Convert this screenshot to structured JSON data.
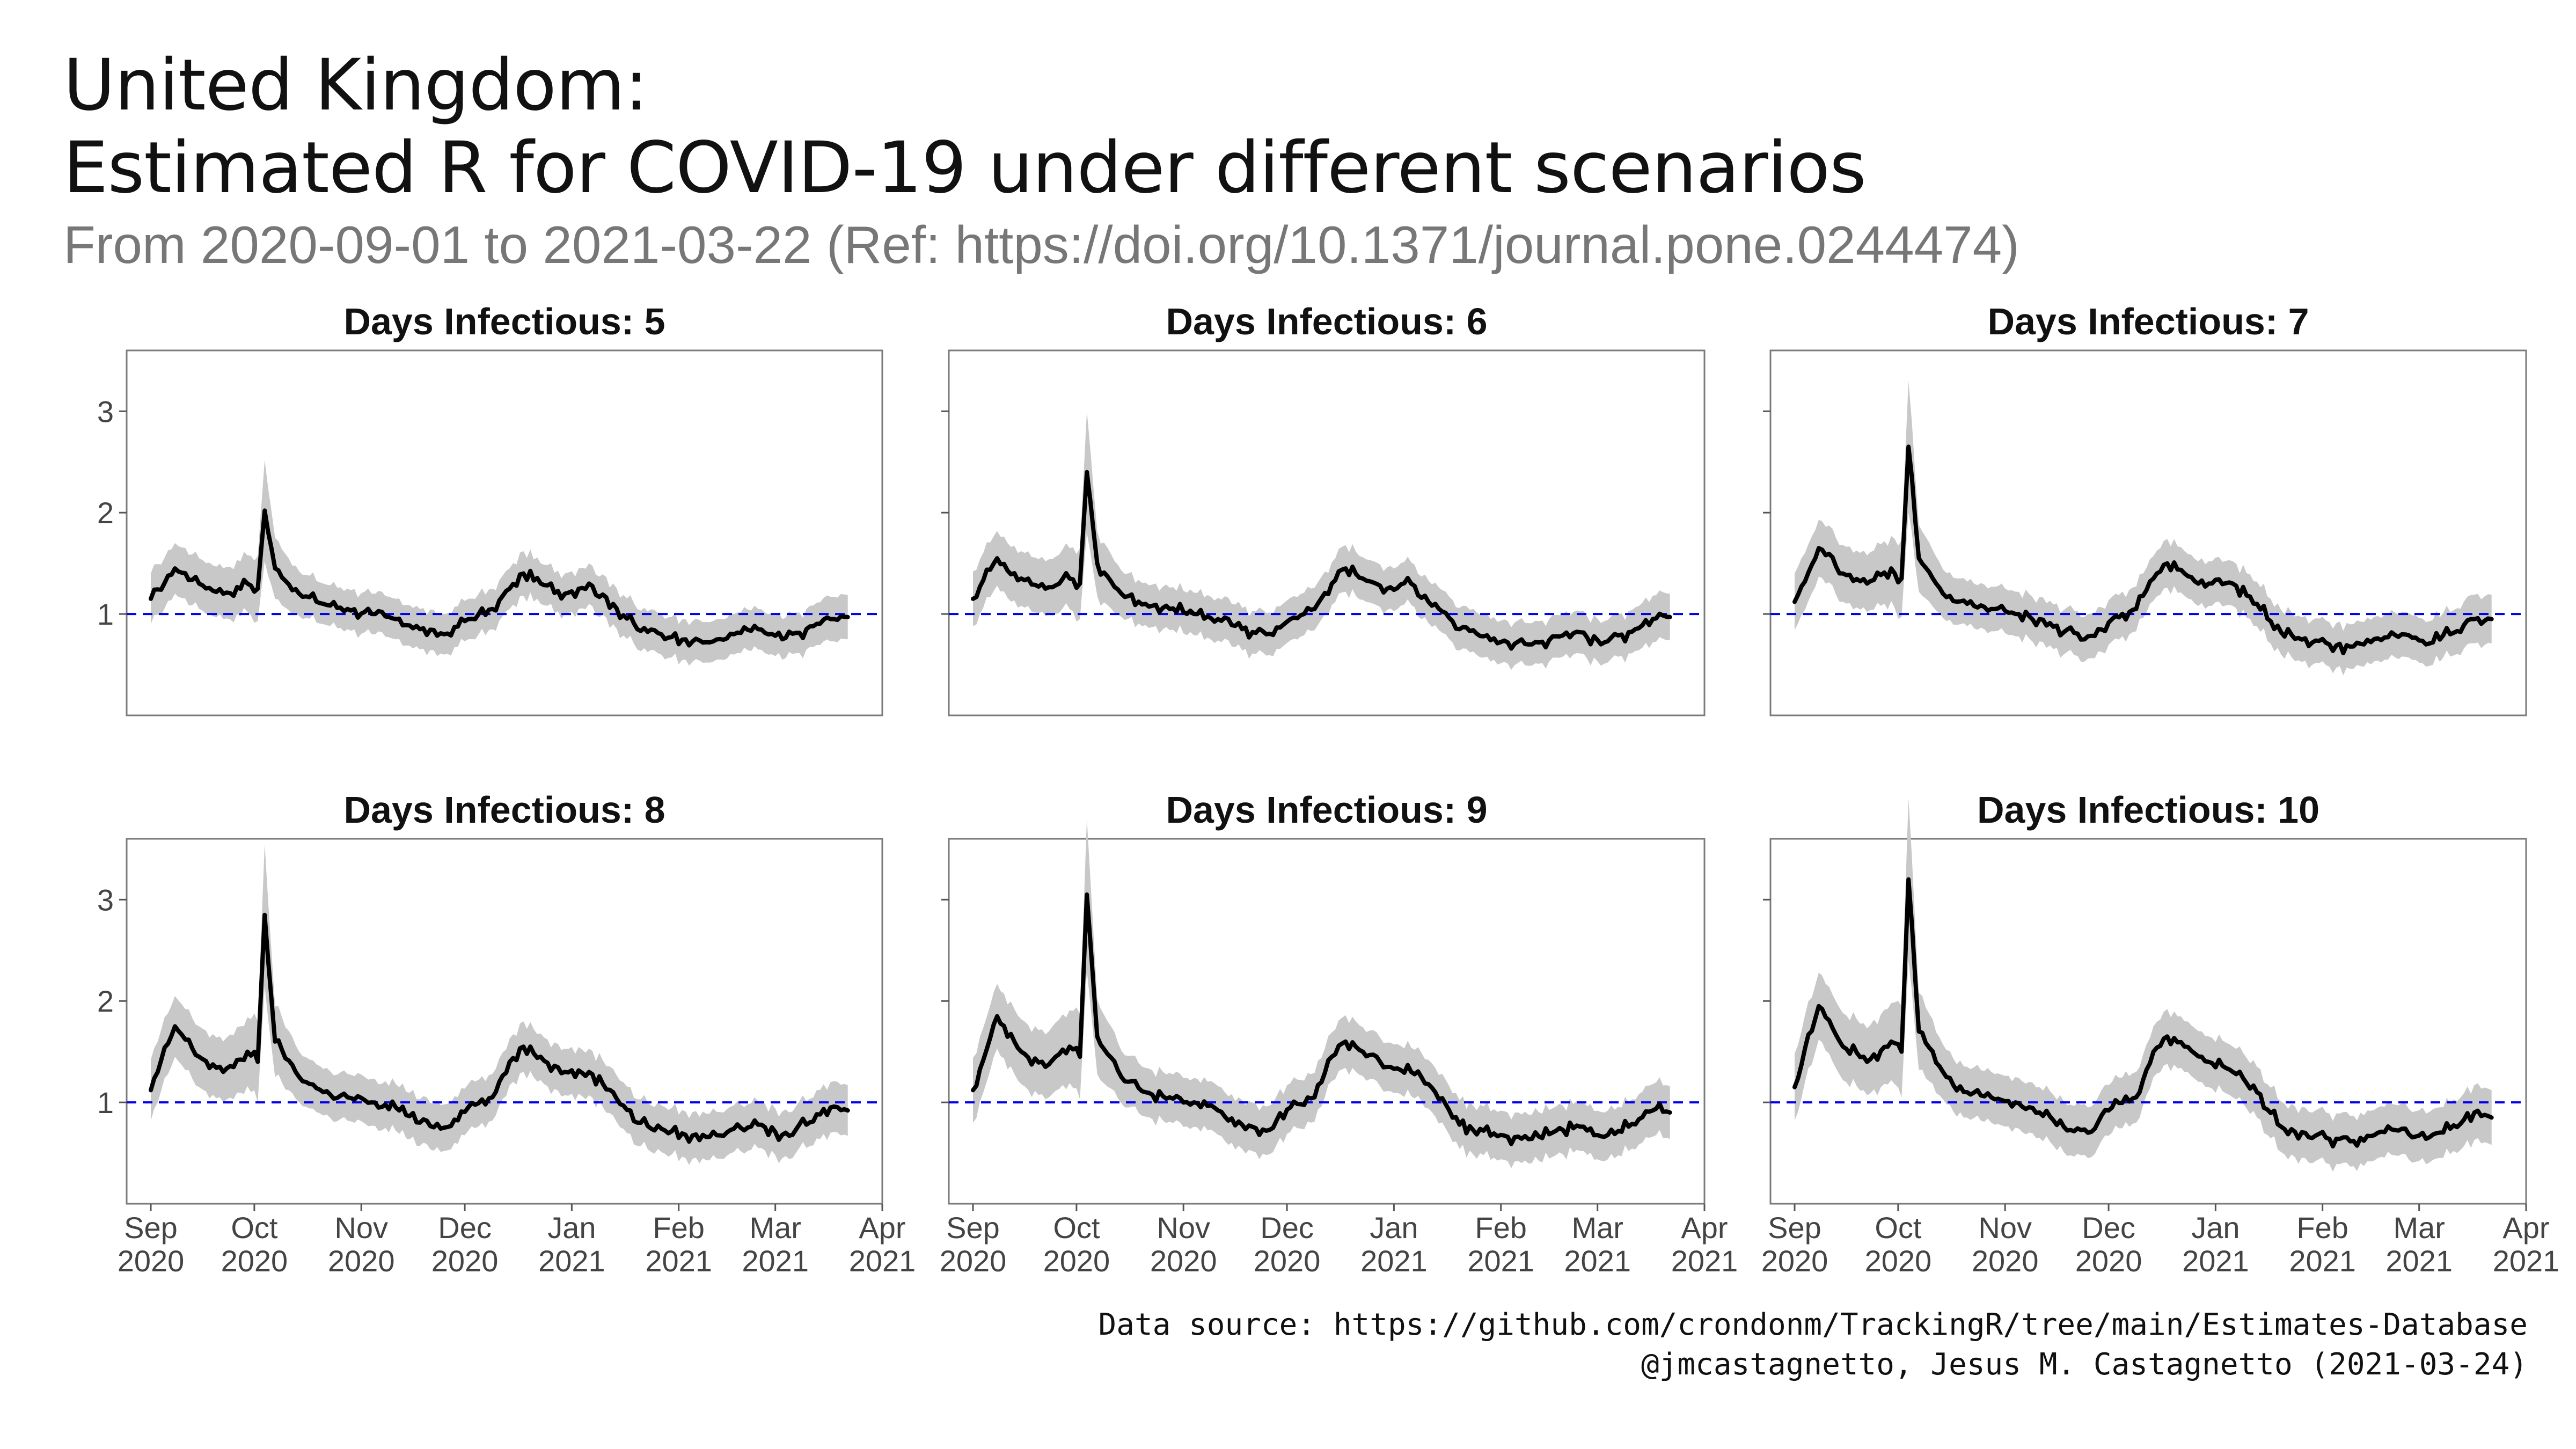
{
  "header": {
    "title_line1": "United Kingdom:",
    "title_line2": "Estimated R for COVID-19 under different scenarios",
    "subtitle": "From 2020-09-01 to 2021-03-22 (Ref: https://doi.org/10.1371/journal.pone.0244474)"
  },
  "caption": {
    "line1": "Data source: https://github.com/crondonm/TrackingR/tree/main/Estimates-Database",
    "line2": "@jmcastagnetto, Jesus M. Castagnetto (2021-03-24)"
  },
  "colors": {
    "line": "#000000",
    "band": "#c8c8c8",
    "reference_line": "#0000ee",
    "panel_border": "#7a7a7a"
  },
  "chart_data": {
    "type": "line",
    "facet_by": "Days Infectious",
    "xlim": [
      "2020-08-25",
      "2021-04-01"
    ],
    "ylim": [
      0,
      3.6
    ],
    "y_ticks": [
      1,
      2,
      3
    ],
    "x_ticks": [
      {
        "date": "2020-09-01",
        "label": [
          "Sep",
          "2020"
        ]
      },
      {
        "date": "2020-10-01",
        "label": [
          "Oct",
          "2020"
        ]
      },
      {
        "date": "2020-11-01",
        "label": [
          "Nov",
          "2020"
        ]
      },
      {
        "date": "2020-12-01",
        "label": [
          "Dec",
          "2020"
        ]
      },
      {
        "date": "2021-01-01",
        "label": [
          "Jan",
          "2021"
        ]
      },
      {
        "date": "2021-02-01",
        "label": [
          "Feb",
          "2021"
        ]
      },
      {
        "date": "2021-03-01",
        "label": [
          "Mar",
          "2021"
        ]
      },
      {
        "date": "2021-04-01",
        "label": [
          "Apr",
          "2021"
        ]
      }
    ],
    "reference_line_y": 1,
    "grid": false,
    "series_dates": [
      "2020-09-01",
      "2020-09-08",
      "2020-09-15",
      "2020-09-22",
      "2020-09-29",
      "2020-10-02",
      "2020-10-04",
      "2020-10-07",
      "2020-10-14",
      "2020-10-21",
      "2020-10-28",
      "2020-11-04",
      "2020-11-11",
      "2020-11-18",
      "2020-11-25",
      "2020-12-02",
      "2020-12-09",
      "2020-12-14",
      "2020-12-18",
      "2020-12-23",
      "2020-12-30",
      "2021-01-06",
      "2021-01-13",
      "2021-01-20",
      "2021-01-27",
      "2021-02-03",
      "2021-02-10",
      "2021-02-17",
      "2021-02-24",
      "2021-03-03",
      "2021-03-10",
      "2021-03-17",
      "2021-03-22"
    ],
    "panels": [
      {
        "title": "Days Infectious: 5",
        "values": [
          1.15,
          1.45,
          1.3,
          1.2,
          1.3,
          1.25,
          2.02,
          1.45,
          1.2,
          1.1,
          1.05,
          1.0,
          0.95,
          0.85,
          0.8,
          0.95,
          1.05,
          1.25,
          1.4,
          1.3,
          1.2,
          1.3,
          1.1,
          0.85,
          0.8,
          0.75,
          0.72,
          0.8,
          0.85,
          0.75,
          0.85,
          0.95,
          0.97
        ],
        "band": [
          0.25,
          0.25,
          0.25,
          0.25,
          0.28,
          0.32,
          0.5,
          0.3,
          0.22,
          0.2,
          0.2,
          0.2,
          0.2,
          0.2,
          0.2,
          0.2,
          0.2,
          0.2,
          0.22,
          0.2,
          0.2,
          0.2,
          0.2,
          0.2,
          0.2,
          0.2,
          0.2,
          0.2,
          0.2,
          0.2,
          0.2,
          0.22,
          0.22
        ]
      },
      {
        "title": "Days Infectious: 6",
        "values": [
          1.15,
          1.55,
          1.35,
          1.25,
          1.35,
          1.3,
          2.4,
          1.5,
          1.2,
          1.1,
          1.05,
          1.0,
          0.95,
          0.85,
          0.8,
          0.95,
          1.05,
          1.3,
          1.45,
          1.35,
          1.25,
          1.3,
          1.1,
          0.85,
          0.78,
          0.72,
          0.7,
          0.78,
          0.82,
          0.72,
          0.82,
          0.95,
          0.97
        ],
        "band": [
          0.27,
          0.27,
          0.27,
          0.27,
          0.3,
          0.35,
          0.6,
          0.32,
          0.23,
          0.21,
          0.21,
          0.21,
          0.21,
          0.21,
          0.21,
          0.21,
          0.21,
          0.21,
          0.23,
          0.21,
          0.21,
          0.21,
          0.21,
          0.21,
          0.21,
          0.21,
          0.21,
          0.21,
          0.21,
          0.21,
          0.21,
          0.23,
          0.23
        ]
      },
      {
        "title": "Days Infectious: 7",
        "values": [
          1.12,
          1.65,
          1.4,
          1.3,
          1.45,
          1.35,
          2.65,
          1.55,
          1.2,
          1.1,
          1.05,
          1.0,
          0.95,
          0.82,
          0.78,
          0.95,
          1.05,
          1.35,
          1.5,
          1.4,
          1.3,
          1.3,
          1.1,
          0.82,
          0.76,
          0.7,
          0.68,
          0.76,
          0.8,
          0.7,
          0.8,
          0.95,
          0.95
        ],
        "band": [
          0.28,
          0.28,
          0.28,
          0.28,
          0.32,
          0.38,
          0.65,
          0.33,
          0.24,
          0.22,
          0.22,
          0.22,
          0.22,
          0.22,
          0.22,
          0.22,
          0.22,
          0.22,
          0.24,
          0.22,
          0.22,
          0.22,
          0.22,
          0.22,
          0.22,
          0.22,
          0.22,
          0.22,
          0.22,
          0.22,
          0.22,
          0.24,
          0.24
        ]
      },
      {
        "title": "Days Infectious: 8",
        "values": [
          1.12,
          1.75,
          1.45,
          1.3,
          1.5,
          1.4,
          2.85,
          1.6,
          1.25,
          1.1,
          1.05,
          1.0,
          0.95,
          0.8,
          0.75,
          0.95,
          1.05,
          1.4,
          1.55,
          1.45,
          1.3,
          1.3,
          1.1,
          0.8,
          0.74,
          0.68,
          0.66,
          0.74,
          0.78,
          0.68,
          0.78,
          0.95,
          0.92
        ],
        "band": [
          0.3,
          0.3,
          0.3,
          0.3,
          0.34,
          0.4,
          0.7,
          0.35,
          0.25,
          0.23,
          0.23,
          0.23,
          0.23,
          0.23,
          0.23,
          0.23,
          0.23,
          0.23,
          0.25,
          0.23,
          0.23,
          0.23,
          0.23,
          0.23,
          0.23,
          0.23,
          0.23,
          0.23,
          0.23,
          0.23,
          0.23,
          0.25,
          0.25
        ]
      },
      {
        "title": "Days Infectious: 9",
        "values": [
          1.12,
          1.85,
          1.5,
          1.35,
          1.55,
          1.45,
          3.05,
          1.65,
          1.25,
          1.1,
          1.05,
          1.0,
          0.92,
          0.78,
          0.72,
          0.95,
          1.05,
          1.45,
          1.6,
          1.5,
          1.35,
          1.3,
          1.1,
          0.78,
          0.72,
          0.66,
          0.64,
          0.72,
          0.76,
          0.66,
          0.76,
          0.92,
          0.9
        ],
        "band": [
          0.32,
          0.32,
          0.32,
          0.32,
          0.36,
          0.42,
          0.75,
          0.37,
          0.26,
          0.24,
          0.24,
          0.24,
          0.24,
          0.24,
          0.24,
          0.24,
          0.24,
          0.24,
          0.26,
          0.24,
          0.24,
          0.24,
          0.24,
          0.24,
          0.24,
          0.24,
          0.24,
          0.24,
          0.24,
          0.24,
          0.24,
          0.26,
          0.26
        ]
      },
      {
        "title": "Days Infectious: 10",
        "values": [
          1.15,
          1.95,
          1.55,
          1.4,
          1.6,
          1.5,
          3.2,
          1.7,
          1.3,
          1.1,
          1.05,
          1.0,
          0.9,
          0.76,
          0.7,
          0.95,
          1.05,
          1.5,
          1.65,
          1.55,
          1.4,
          1.3,
          1.1,
          0.76,
          0.7,
          0.64,
          0.62,
          0.7,
          0.74,
          0.64,
          0.74,
          0.9,
          0.85
        ],
        "band": [
          0.33,
          0.33,
          0.33,
          0.33,
          0.38,
          0.45,
          0.8,
          0.38,
          0.27,
          0.25,
          0.25,
          0.25,
          0.25,
          0.25,
          0.25,
          0.25,
          0.25,
          0.25,
          0.27,
          0.25,
          0.25,
          0.25,
          0.25,
          0.25,
          0.25,
          0.25,
          0.25,
          0.25,
          0.25,
          0.25,
          0.25,
          0.27,
          0.27
        ]
      }
    ]
  }
}
